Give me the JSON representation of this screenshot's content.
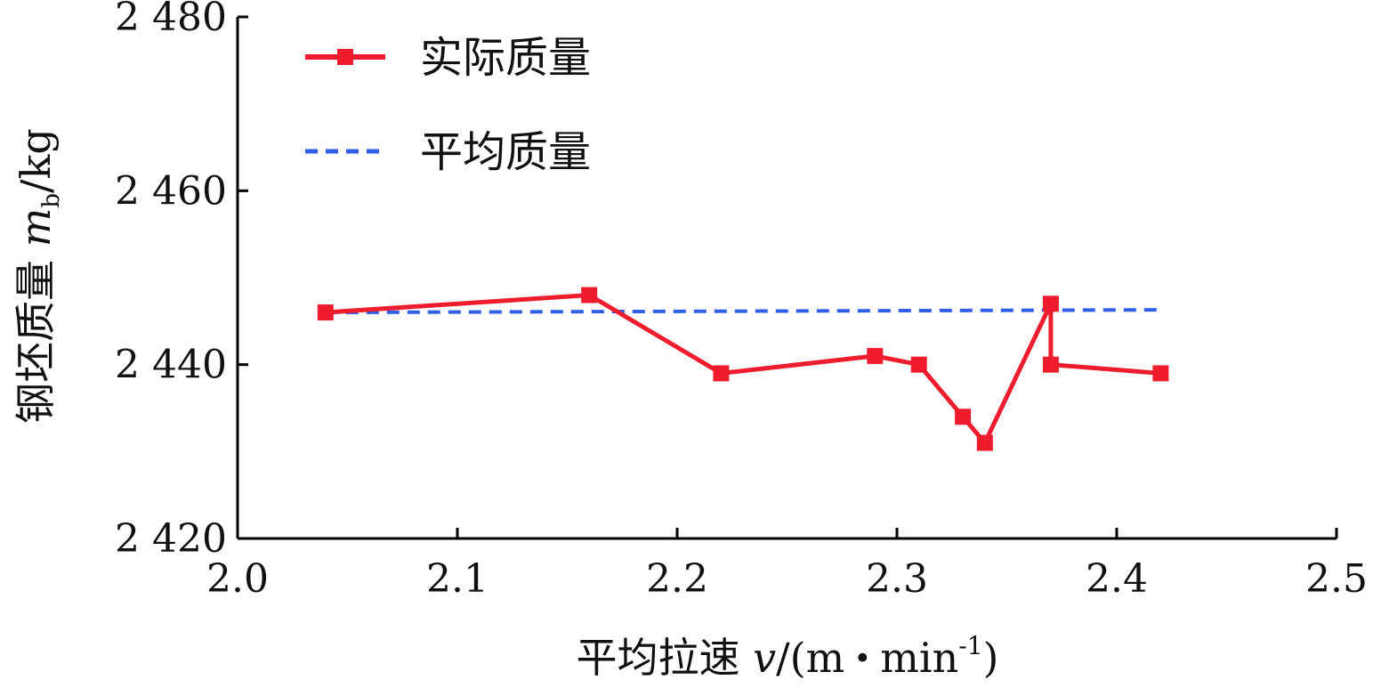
{
  "chart_data": {
    "type": "line",
    "xlabel": {
      "prefix": "平均拉速 ",
      "var": "v",
      "unit_open": "/(m",
      "dot": "•",
      "unit_mid": "min",
      "sup": "-1",
      "unit_close": ")"
    },
    "ylabel": {
      "prefix": "钢坯质量 ",
      "var": "m",
      "sub": "b",
      "unit": "/kg"
    },
    "xlim": [
      2.0,
      2.5
    ],
    "ylim": [
      2420,
      2480
    ],
    "xticks": [
      2.0,
      2.1,
      2.2,
      2.3,
      2.4,
      2.5
    ],
    "xtick_labels": [
      "2.0",
      "2.1",
      "2.2",
      "2.3",
      "2.4",
      "2.5"
    ],
    "yticks": [
      2420,
      2440,
      2460,
      2480
    ],
    "ytick_labels": [
      "2 420",
      "2 440",
      "2 460",
      "2 480"
    ],
    "grid": false,
    "legend_position": "top-left",
    "series": [
      {
        "name": "实际质量",
        "color": "#ee1c2c",
        "style": "solid",
        "marker": "square",
        "x": [
          2.04,
          2.16,
          2.22,
          2.29,
          2.31,
          2.33,
          2.34,
          2.37,
          2.37,
          2.42
        ],
        "y": [
          2446,
          2448,
          2439,
          2441,
          2440,
          2434,
          2431,
          2447,
          2440,
          2439
        ]
      },
      {
        "name": "平均质量",
        "color": "#2f5fe6",
        "style": "dashed",
        "marker": "none",
        "x": [
          2.04,
          2.42
        ],
        "y": [
          2446,
          2446.3
        ]
      }
    ]
  }
}
